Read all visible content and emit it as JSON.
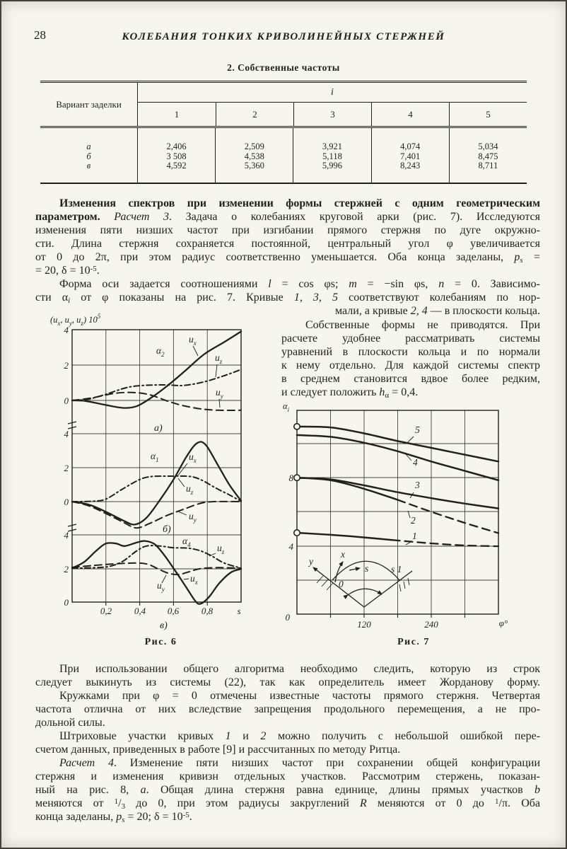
{
  "page": {
    "number": "28",
    "running_title": "КОЛЕБАНИЯ ТОНКИХ КРИВОЛИНЕЙНЫХ СТЕРЖНЕЙ"
  },
  "table": {
    "caption": "2. Собственные частоты",
    "stub_header": "Вариант заделки",
    "span_header": "i",
    "columns": [
      "1",
      "2",
      "3",
      "4",
      "5"
    ],
    "rows": [
      {
        "label": "а",
        "values": [
          "2,406",
          "2,509",
          "3,921",
          "4,074",
          "5,034"
        ]
      },
      {
        "label": "б",
        "values": [
          "3 508",
          "4,538",
          "5,118",
          "7,401",
          "8,475"
        ]
      },
      {
        "label": "в",
        "values": [
          "4,592",
          "5,360",
          "5,996",
          "8,243",
          "8,711"
        ]
      }
    ]
  },
  "text": {
    "p1": [
      {
        "ind": true,
        "seg": [
          {
            "t": "Изменения спектров при изменении формы стержней с одним геометрическим",
            "s": "b"
          }
        ]
      },
      {
        "seg": [
          {
            "t": "параметром. ",
            "s": "b"
          },
          {
            "t": "Расчет 3",
            "s": "i"
          },
          {
            "t": ". Задача о колебаниях круговой арки (рис. 7). Исследуются"
          }
        ]
      },
      {
        "seg": [
          {
            "t": "изменения пяти низших частот при изгибании прямого стержня по дуге окружно-"
          }
        ]
      },
      {
        "seg": [
          {
            "t": "сти. Длина стержня сохраняется постоянной, центральный угол φ увеличивается"
          }
        ]
      },
      {
        "seg": [
          {
            "t": "от 0 до 2π, при этом радиус соответственно уменьшается. Оба конца заделаны, "
          },
          {
            "t": "p",
            "s": "i"
          },
          {
            "t": "s",
            "s": "isub"
          },
          {
            "t": " ="
          }
        ]
      },
      {
        "last": true,
        "seg": [
          {
            "t": "= 20,  δ = 10"
          },
          {
            "t": "-5",
            "s": "sup"
          },
          {
            "t": "."
          }
        ]
      }
    ],
    "p2": [
      {
        "ind": true,
        "seg": [
          {
            "t": "Форма оси задается соотношениями "
          },
          {
            "t": "l",
            "s": "i"
          },
          {
            "t": " = cos φs; "
          },
          {
            "t": "m",
            "s": "i"
          },
          {
            "t": " = −sin φs, "
          },
          {
            "t": "n",
            "s": "i"
          },
          {
            "t": " = 0. Зависимо-"
          }
        ]
      },
      {
        "seg": [
          {
            "t": "сти α"
          },
          {
            "t": "i",
            "s": "isub"
          },
          {
            "t": " от φ показаны на рис. 7. Кривые "
          },
          {
            "t": "1, 3, 5",
            "s": "i"
          },
          {
            "t": " соответствуют  колебаниям по нор-"
          }
        ]
      }
    ],
    "p2frag": [
      {
        "last": true,
        "seg": [
          {
            "t": "мали, а кривые "
          },
          {
            "t": "2, 4",
            "s": "i"
          },
          {
            "t": " — в плоскости кольца."
          }
        ]
      }
    ],
    "col": [
      {
        "ind": true,
        "seg": [
          {
            "t": "Собственные формы не приводятся. При"
          }
        ]
      },
      {
        "seg": [
          {
            "t": "расчете удобнее рассматривать системы"
          }
        ]
      },
      {
        "seg": [
          {
            "t": "уравнений в плоскости кольца и по нормали"
          }
        ]
      },
      {
        "seg": [
          {
            "t": "к нему отдельно. Для каждой системы спектр"
          }
        ]
      },
      {
        "seg": [
          {
            "t": "в среднем становится вдвое более редким,"
          }
        ]
      },
      {
        "last": true,
        "seg": [
          {
            "t": "и следует положить "
          },
          {
            "t": "h",
            "s": "i"
          },
          {
            "t": "α",
            "s": "sub"
          },
          {
            "t": " = 0,4."
          }
        ]
      }
    ],
    "p3": [
      {
        "ind": true,
        "seg": [
          {
            "t": "При использовании общего алгоритма необходимо следить, которую из строк"
          }
        ]
      },
      {
        "seg": [
          {
            "t": "следует выкинуть из системы (22), так как определитель имеет Жорданову форму."
          }
        ]
      }
    ],
    "p4": [
      {
        "ind": true,
        "seg": [
          {
            "t": "Кружками при φ = 0 отмечены известные частоты прямого стержня. Четвертая"
          }
        ]
      },
      {
        "seg": [
          {
            "t": "частота отлична от них вследствие запрещения продольного перемещения, а не про-"
          }
        ]
      },
      {
        "last": true,
        "seg": [
          {
            "t": "дольной силы."
          }
        ]
      }
    ],
    "p5": [
      {
        "ind": true,
        "seg": [
          {
            "t": "Штриховые участки кривых "
          },
          {
            "t": "1",
            "s": "i"
          },
          {
            "t": " и "
          },
          {
            "t": "2",
            "s": "i"
          },
          {
            "t": " можно получить с небольшой ошибкой пере-"
          }
        ]
      },
      {
        "last": true,
        "seg": [
          {
            "t": "счетом данных, приведенных в работе [9] и рассчитанных по методу Ритца."
          }
        ]
      }
    ],
    "p6": [
      {
        "ind": true,
        "seg": [
          {
            "t": "Расчет 4",
            "s": "i"
          },
          {
            "t": ". Изменение пяти низших частот при сохранении общей конфигурации"
          }
        ]
      },
      {
        "seg": [
          {
            "t": "стержня и изменения кривизн отдельных участков. Рассмотрим стержень, показан-"
          }
        ]
      },
      {
        "seg": [
          {
            "t": "ный на рис. 8, "
          },
          {
            "t": "а",
            "s": "i"
          },
          {
            "t": ". Общая длина стержня равна единице, длины прямых участков "
          },
          {
            "t": "b",
            "s": "i"
          }
        ]
      },
      {
        "seg": [
          {
            "t": "меняются от "
          },
          {
            "t": "1",
            "s": "sup"
          },
          {
            "t": "/"
          },
          {
            "t": "3",
            "s": "sub"
          },
          {
            "t": " до 0, при этом радиусы закруглений "
          },
          {
            "t": "R",
            "s": "i"
          },
          {
            "t": " меняются от 0 до "
          },
          {
            "t": "1",
            "s": "sup"
          },
          {
            "t": "/π. Оба"
          }
        ]
      },
      {
        "last": true,
        "seg": [
          {
            "t": "конца заделаны, "
          },
          {
            "t": "p",
            "s": "i"
          },
          {
            "t": "s",
            "s": "isub"
          },
          {
            "t": " = 20;  δ = 10"
          },
          {
            "t": "-5",
            "s": "sup"
          },
          {
            "t": "."
          }
        ]
      }
    ]
  },
  "fig6": {
    "caption": "Рис. 6",
    "type": "line",
    "ylabel": [
      {
        "t": "(u"
      },
      {
        "t": "x",
        "s": "sub"
      },
      {
        "t": ", u"
      },
      {
        "t": "y",
        "s": "sub"
      },
      {
        "t": ", u"
      },
      {
        "t": "z",
        "s": "sub"
      },
      {
        "t": ") 10"
      },
      {
        "t": "5",
        "s": "sup"
      }
    ],
    "yticks": [
      "4",
      "2",
      "0"
    ],
    "xticks": [
      "0,2",
      "0,4",
      "0,6",
      "0,8"
    ],
    "xaxis_end": "s",
    "xlim": [
      0,
      1
    ],
    "series_labels": {
      "ux": [
        {
          "t": "u"
        },
        {
          "t": "x",
          "s": "sub"
        }
      ],
      "uy": [
        {
          "t": "u"
        },
        {
          "t": "y",
          "s": "sub"
        }
      ],
      "uz": [
        {
          "t": "u"
        },
        {
          "t": "z",
          "s": "sub"
        }
      ]
    },
    "panels": [
      {
        "tag": "а)",
        "alpha": [
          {
            "t": "α"
          },
          {
            "t": "2",
            "s": "sub"
          }
        ],
        "series": {
          "ux": [
            [
              0,
              0
            ],
            [
              0.08,
              -0.03
            ],
            [
              0.18,
              -0.22
            ],
            [
              0.3,
              -0.42
            ],
            [
              0.38,
              -0.33
            ],
            [
              0.46,
              0.1
            ],
            [
              0.56,
              0.8
            ],
            [
              0.66,
              1.6
            ],
            [
              0.78,
              2.6
            ],
            [
              0.9,
              3.3
            ],
            [
              1,
              3.9
            ]
          ],
          "uz": [
            [
              0,
              0
            ],
            [
              0.1,
              0.08
            ],
            [
              0.2,
              0.35
            ],
            [
              0.32,
              0.72
            ],
            [
              0.42,
              0.85
            ],
            [
              0.55,
              0.88
            ],
            [
              0.66,
              0.85
            ],
            [
              0.78,
              1.05
            ],
            [
              0.9,
              1.4
            ],
            [
              1,
              1.75
            ]
          ],
          "uy": [
            [
              0,
              0
            ],
            [
              0.12,
              0.15
            ],
            [
              0.25,
              0.4
            ],
            [
              0.36,
              0.45
            ],
            [
              0.46,
              0.32
            ],
            [
              0.56,
              -0.02
            ],
            [
              0.66,
              -0.3
            ],
            [
              0.78,
              -0.5
            ],
            [
              0.9,
              -0.56
            ],
            [
              1,
              -0.55
            ]
          ]
        }
      },
      {
        "tag": "б)",
        "alpha": [
          {
            "t": "α"
          },
          {
            "t": "1",
            "s": "sub"
          }
        ],
        "series": {
          "ux": [
            [
              0,
              0
            ],
            [
              0.1,
              -0.18
            ],
            [
              0.2,
              -0.6
            ],
            [
              0.3,
              -1.1
            ],
            [
              0.37,
              -1.35
            ],
            [
              0.44,
              -0.95
            ],
            [
              0.52,
              0.1
            ],
            [
              0.6,
              1.3
            ],
            [
              0.68,
              2.7
            ],
            [
              0.74,
              3.45
            ],
            [
              0.79,
              3.35
            ],
            [
              0.86,
              2.2
            ],
            [
              0.93,
              1
            ],
            [
              1,
              0.05
            ]
          ],
          "uz": [
            [
              0,
              0
            ],
            [
              0.12,
              0.02
            ],
            [
              0.2,
              0.15
            ],
            [
              0.3,
              0.75
            ],
            [
              0.4,
              1.3
            ],
            [
              0.47,
              1.48
            ],
            [
              0.58,
              1.5
            ],
            [
              0.7,
              1.48
            ],
            [
              0.77,
              1.25
            ],
            [
              0.85,
              0.8
            ],
            [
              0.93,
              0.4
            ],
            [
              1,
              0.02
            ]
          ],
          "uy": [
            [
              0,
              0
            ],
            [
              0.1,
              -0.25
            ],
            [
              0.2,
              -0.7
            ],
            [
              0.3,
              -1.2
            ],
            [
              0.38,
              -1.55
            ],
            [
              0.46,
              -1.28
            ],
            [
              0.56,
              -0.82
            ],
            [
              0.66,
              -0.45
            ],
            [
              0.76,
              -0.1
            ],
            [
              0.84,
              0
            ],
            [
              1,
              0
            ]
          ]
        }
      },
      {
        "tag": "в)",
        "alpha": [
          {
            "t": "α"
          },
          {
            "t": "4",
            "s": "sub"
          }
        ],
        "series": {
          "ux": [
            [
              0,
              2
            ],
            [
              0.07,
              2.35
            ],
            [
              0.14,
              3.0
            ],
            [
              0.2,
              3.45
            ],
            [
              0.26,
              3.45
            ],
            [
              0.31,
              3.3
            ],
            [
              0.38,
              3.5
            ],
            [
              0.43,
              3.6
            ],
            [
              0.49,
              3.4
            ],
            [
              0.55,
              2.7
            ],
            [
              0.62,
              1.7
            ],
            [
              0.68,
              0.8
            ],
            [
              0.73,
              0.05
            ],
            [
              0.76,
              -0.1
            ],
            [
              0.81,
              0.3
            ],
            [
              0.87,
              1.1
            ],
            [
              0.94,
              1.75
            ],
            [
              1,
              1.95
            ]
          ],
          "uz": [
            [
              0,
              2
            ],
            [
              0.12,
              2.02
            ],
            [
              0.22,
              2.1
            ],
            [
              0.3,
              2.4
            ],
            [
              0.38,
              3.0
            ],
            [
              0.44,
              3.3
            ],
            [
              0.52,
              3.3
            ],
            [
              0.6,
              3.2
            ],
            [
              0.68,
              3.18
            ],
            [
              0.75,
              3.05
            ],
            [
              0.82,
              2.75
            ],
            [
              0.9,
              2.3
            ],
            [
              1,
              2
            ]
          ],
          "uy": [
            [
              0,
              2.05
            ],
            [
              0.12,
              2.15
            ],
            [
              0.25,
              2.25
            ],
            [
              0.38,
              2.3
            ],
            [
              0.45,
              2.22
            ],
            [
              0.51,
              1.95
            ],
            [
              0.57,
              1.7
            ],
            [
              0.63,
              1.62
            ],
            [
              0.69,
              1.78
            ],
            [
              0.76,
              1.97
            ],
            [
              0.86,
              2.03
            ],
            [
              1,
              2
            ]
          ]
        }
      }
    ]
  },
  "fig7": {
    "caption": "Рис. 7",
    "type": "line",
    "ylabel": [
      {
        "t": "α"
      },
      {
        "t": "i",
        "s": "sub"
      }
    ],
    "yticks": [
      "8",
      "4",
      "0"
    ],
    "xticks": [
      "120",
      "240"
    ],
    "xaxis_end": "φ°",
    "xlim": [
      0,
      360
    ],
    "curve_labels": [
      "5",
      "4",
      "3",
      "2",
      "1"
    ],
    "known_freq_markers": [
      11,
      8,
      4.77
    ],
    "series": {
      "c5": [
        [
          0,
          11
        ],
        [
          60,
          10.95
        ],
        [
          120,
          10.6
        ],
        [
          180,
          10.15
        ],
        [
          240,
          9.75
        ],
        [
          300,
          9.35
        ],
        [
          360,
          8.95
        ]
      ],
      "c4": [
        [
          0,
          10.5
        ],
        [
          60,
          10.4
        ],
        [
          120,
          10.05
        ],
        [
          180,
          9.55
        ],
        [
          240,
          8.95
        ],
        [
          300,
          8.4
        ],
        [
          360,
          7.85
        ]
      ],
      "c3": [
        [
          0,
          8
        ],
        [
          60,
          7.9
        ],
        [
          120,
          7.55
        ],
        [
          180,
          7.15
        ],
        [
          240,
          6.8
        ],
        [
          300,
          6.48
        ],
        [
          360,
          6.2
        ]
      ],
      "c2a": [
        [
          0,
          8
        ],
        [
          60,
          7.85
        ],
        [
          120,
          7.35
        ],
        [
          180,
          6.7
        ]
      ],
      "c2b": [
        [
          180,
          6.7
        ],
        [
          240,
          6
        ],
        [
          300,
          5.35
        ],
        [
          360,
          4.75
        ]
      ],
      "c1a": [
        [
          0,
          4.77
        ],
        [
          60,
          4.65
        ],
        [
          120,
          4.5
        ],
        [
          170,
          4.35
        ]
      ],
      "c1b": [
        [
          170,
          4.35
        ],
        [
          240,
          4.15
        ],
        [
          300,
          4.03
        ],
        [
          360,
          3.98
        ]
      ]
    },
    "inset": {
      "x_label": "x",
      "y_label": "y",
      "origin_label": "0",
      "arc_label": "s",
      "end_label": "s 1"
    }
  }
}
